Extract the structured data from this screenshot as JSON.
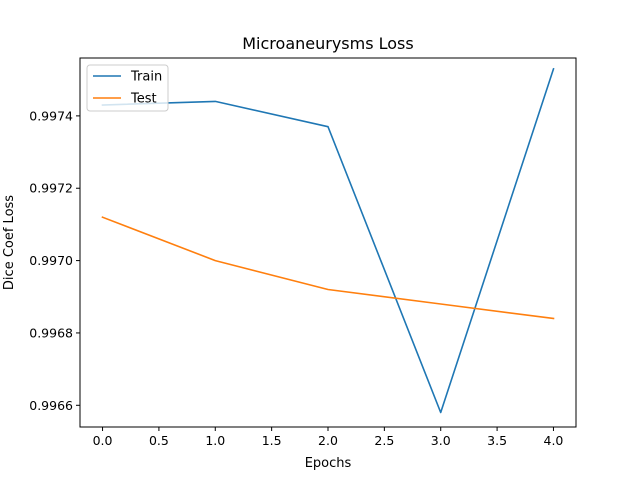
{
  "chart_data": {
    "type": "line",
    "title": "Microaneurysms Loss",
    "xlabel": "Epochs",
    "ylabel": "Dice Coef Loss",
    "x": [
      0.0,
      1.0,
      2.0,
      3.0,
      4.0
    ],
    "xlim": [
      -0.2,
      4.2
    ],
    "ylim": [
      0.99654,
      0.99756
    ],
    "xticks": [
      0.0,
      0.5,
      1.0,
      1.5,
      2.0,
      2.5,
      3.0,
      3.5,
      4.0
    ],
    "xtick_labels": [
      "0.0",
      "0.5",
      "1.0",
      "1.5",
      "2.0",
      "2.5",
      "3.0",
      "3.5",
      "4.0"
    ],
    "yticks": [
      0.9966,
      0.9968,
      0.997,
      0.9972,
      0.9974
    ],
    "ytick_labels": [
      "0.9966",
      "0.9968",
      "0.9970",
      "0.9972",
      "0.9974"
    ],
    "grid": false,
    "legend_position": "upper left",
    "series": [
      {
        "name": "Train",
        "color": "#1f77b4",
        "values": [
          0.99743,
          0.99744,
          0.99737,
          0.99658,
          0.99753
        ]
      },
      {
        "name": "Test",
        "color": "#ff7f0e",
        "values": [
          0.99712,
          0.997,
          0.99692,
          0.99688,
          0.99684
        ]
      }
    ]
  }
}
